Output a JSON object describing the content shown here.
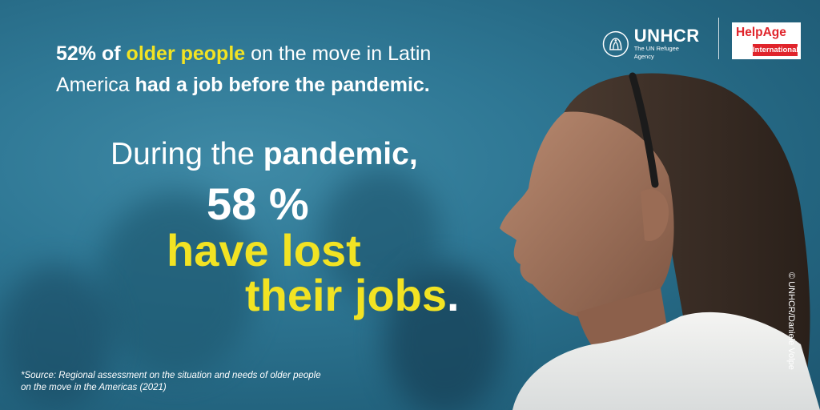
{
  "headline": {
    "part1": "52% of",
    "highlight": "older people",
    "part2": "on the move in Latin America",
    "bold": "had a job before the pandemic."
  },
  "during": {
    "text": "During the",
    "bold": "pandemic,"
  },
  "stat": {
    "percent": "58 %",
    "line1": "have lost",
    "line2": "their jobs",
    "period": "."
  },
  "source": {
    "line1": "*Source: Regional assessment on the situation and needs of older people",
    "line2": "on the move in the Americas (2021)"
  },
  "credit": "© UNHCR/Daniele Volpe",
  "logos": {
    "unhcr_name": "UNHCR",
    "unhcr_sub": "The UN Refugee Agency",
    "helpage_name": "HelpAge",
    "helpage_sub": "International"
  },
  "colors": {
    "accent_yellow": "#f2e323",
    "background_teal": "#2f7895",
    "helpage_red": "#e0242b"
  }
}
